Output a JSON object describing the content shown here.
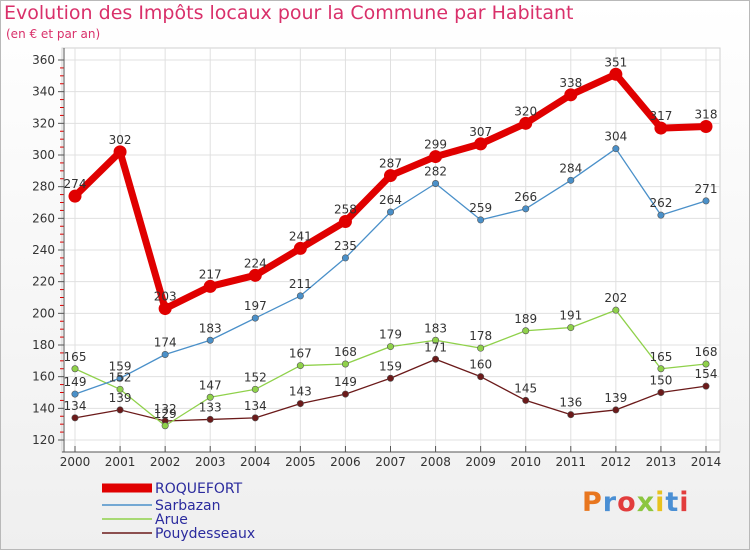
{
  "title": "Evolution des Impôts locaux pour la Commune par Habitant",
  "subtitle": "(en € et par an)",
  "logo": {
    "text": "Proxiti",
    "colors": [
      "#e8761f",
      "#4a8fd4",
      "#e23d3d",
      "#8cc63f",
      "#e8c21f",
      "#4a8fd4",
      "#e23d3d"
    ]
  },
  "colors": {
    "ROQUEFORT": "#e00000",
    "Sarbazan": "#4a90c9",
    "Arue": "#8fd14a",
    "Pouydesseaux": "#6b1a1a",
    "axis": "#555555",
    "grid": "#e0e0e0",
    "legend_text": "#2b2b9e"
  },
  "chart_data": {
    "type": "line",
    "x": [
      "2000",
      "2001",
      "2002",
      "2003",
      "2004",
      "2005",
      "2006",
      "2007",
      "2008",
      "2009",
      "2010",
      "2011",
      "2012",
      "2013",
      "2014"
    ],
    "ylim": [
      120,
      360
    ],
    "yticks": [
      120,
      140,
      160,
      180,
      200,
      220,
      240,
      260,
      280,
      300,
      320,
      340,
      360
    ],
    "grid": true,
    "legend_position": "bottom-left",
    "series": [
      {
        "name": "ROQUEFORT",
        "values": [
          274,
          302,
          203,
          217,
          224,
          241,
          258,
          287,
          299,
          307,
          320,
          338,
          351,
          317,
          318
        ]
      },
      {
        "name": "Sarbazan",
        "values": [
          149,
          159,
          174,
          183,
          197,
          211,
          235,
          264,
          282,
          259,
          266,
          284,
          304,
          262,
          271
        ]
      },
      {
        "name": "Arue",
        "values": [
          165,
          152,
          129,
          147,
          152,
          167,
          168,
          179,
          183,
          178,
          189,
          191,
          202,
          165,
          168
        ]
      },
      {
        "name": "Pouydesseaux",
        "values": [
          134,
          139,
          132,
          133,
          134,
          143,
          149,
          159,
          171,
          160,
          145,
          136,
          139,
          150,
          154
        ]
      }
    ]
  }
}
